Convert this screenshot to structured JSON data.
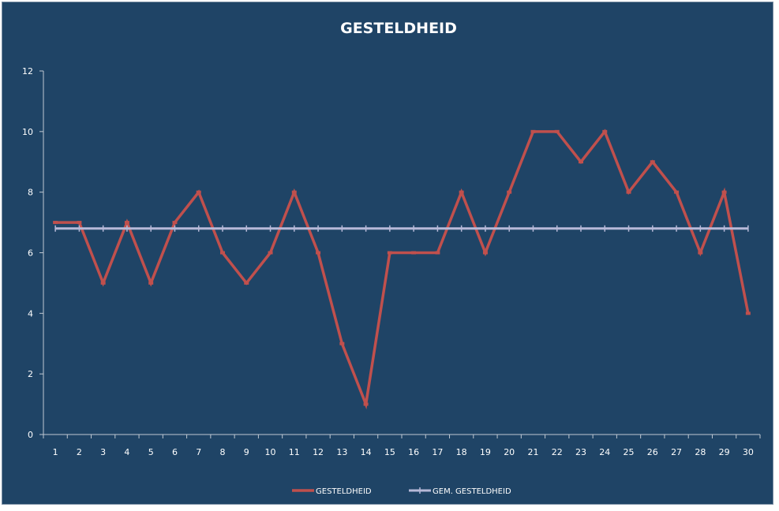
{
  "chart_data": {
    "type": "line",
    "title": "GESTELDHEID",
    "xlabel": "",
    "ylabel": "",
    "ylim": [
      0,
      12
    ],
    "yticks": [
      0,
      2,
      4,
      6,
      8,
      10,
      12
    ],
    "categories": [
      "1",
      "2",
      "3",
      "4",
      "5",
      "6",
      "7",
      "8",
      "9",
      "10",
      "11",
      "12",
      "13",
      "14",
      "15",
      "16",
      "17",
      "18",
      "19",
      "20",
      "21",
      "22",
      "23",
      "24",
      "25",
      "26",
      "27",
      "28",
      "29",
      "30"
    ],
    "series": [
      {
        "name": "GESTELDHEID",
        "color": "#c0504d",
        "values": [
          7,
          7,
          5,
          7,
          5,
          7,
          8,
          6,
          5,
          6,
          8,
          6,
          3,
          1,
          6,
          6,
          6,
          8,
          6,
          8,
          10,
          10,
          9,
          10,
          8,
          9,
          8,
          6,
          8,
          4
        ]
      },
      {
        "name": "GEM. GESTELDHEID",
        "color": "#b7b9d8",
        "values": [
          6.8,
          6.8,
          6.8,
          6.8,
          6.8,
          6.8,
          6.8,
          6.8,
          6.8,
          6.8,
          6.8,
          6.8,
          6.8,
          6.8,
          6.8,
          6.8,
          6.8,
          6.8,
          6.8,
          6.8,
          6.8,
          6.8,
          6.8,
          6.8,
          6.8,
          6.8,
          6.8,
          6.8,
          6.8,
          6.8
        ]
      }
    ],
    "legend": "bottom",
    "grid": false,
    "background": "#1f4466",
    "axis_color": "#bfc8d2"
  }
}
